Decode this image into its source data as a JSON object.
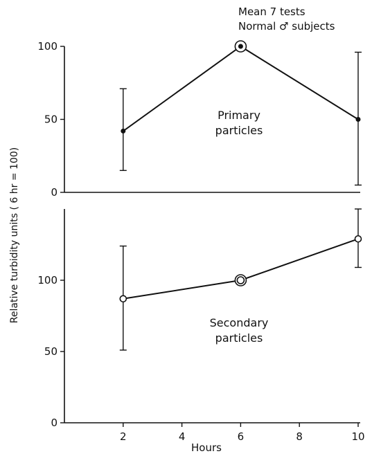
{
  "chart_data": [
    {
      "type": "line",
      "panel": "top",
      "annotation_lines": [
        "Mean 7 tests",
        "Normal ♂ subjects"
      ],
      "series_label_lines": [
        "Primary",
        "particles"
      ],
      "x": [
        2,
        6,
        10
      ],
      "values": [
        42,
        100,
        50
      ],
      "error_low": [
        15,
        100,
        5
      ],
      "error_high": [
        71,
        100,
        96
      ],
      "reference_point_index": 1,
      "marker": "filled",
      "ylim": [
        0,
        100
      ],
      "yticks": [
        0,
        50,
        100
      ],
      "ytick_labels": [
        "0",
        "50",
        "100"
      ]
    },
    {
      "type": "line",
      "panel": "bottom",
      "series_label_lines": [
        "Secondary",
        "particles"
      ],
      "x": [
        2,
        6,
        10
      ],
      "values": [
        87,
        100,
        129
      ],
      "error_low": [
        51,
        100,
        109
      ],
      "error_high": [
        124,
        100,
        150
      ],
      "reference_point_index": 1,
      "marker": "open",
      "ylim": [
        0,
        150
      ],
      "yticks": [
        0,
        50,
        100
      ],
      "ytick_labels": [
        "0",
        "50",
        "100"
      ],
      "xlim": [
        0,
        10
      ],
      "xticks": [
        2,
        4,
        6,
        8,
        10
      ],
      "xtick_labels": [
        "2",
        "4",
        "6",
        "8",
        "10"
      ]
    }
  ],
  "ylabel": "Relative turbidity units ( 6 hr = 100)",
  "xlabel": "Hours",
  "colors": {
    "ink": "#111111",
    "background": "#ffffff"
  }
}
